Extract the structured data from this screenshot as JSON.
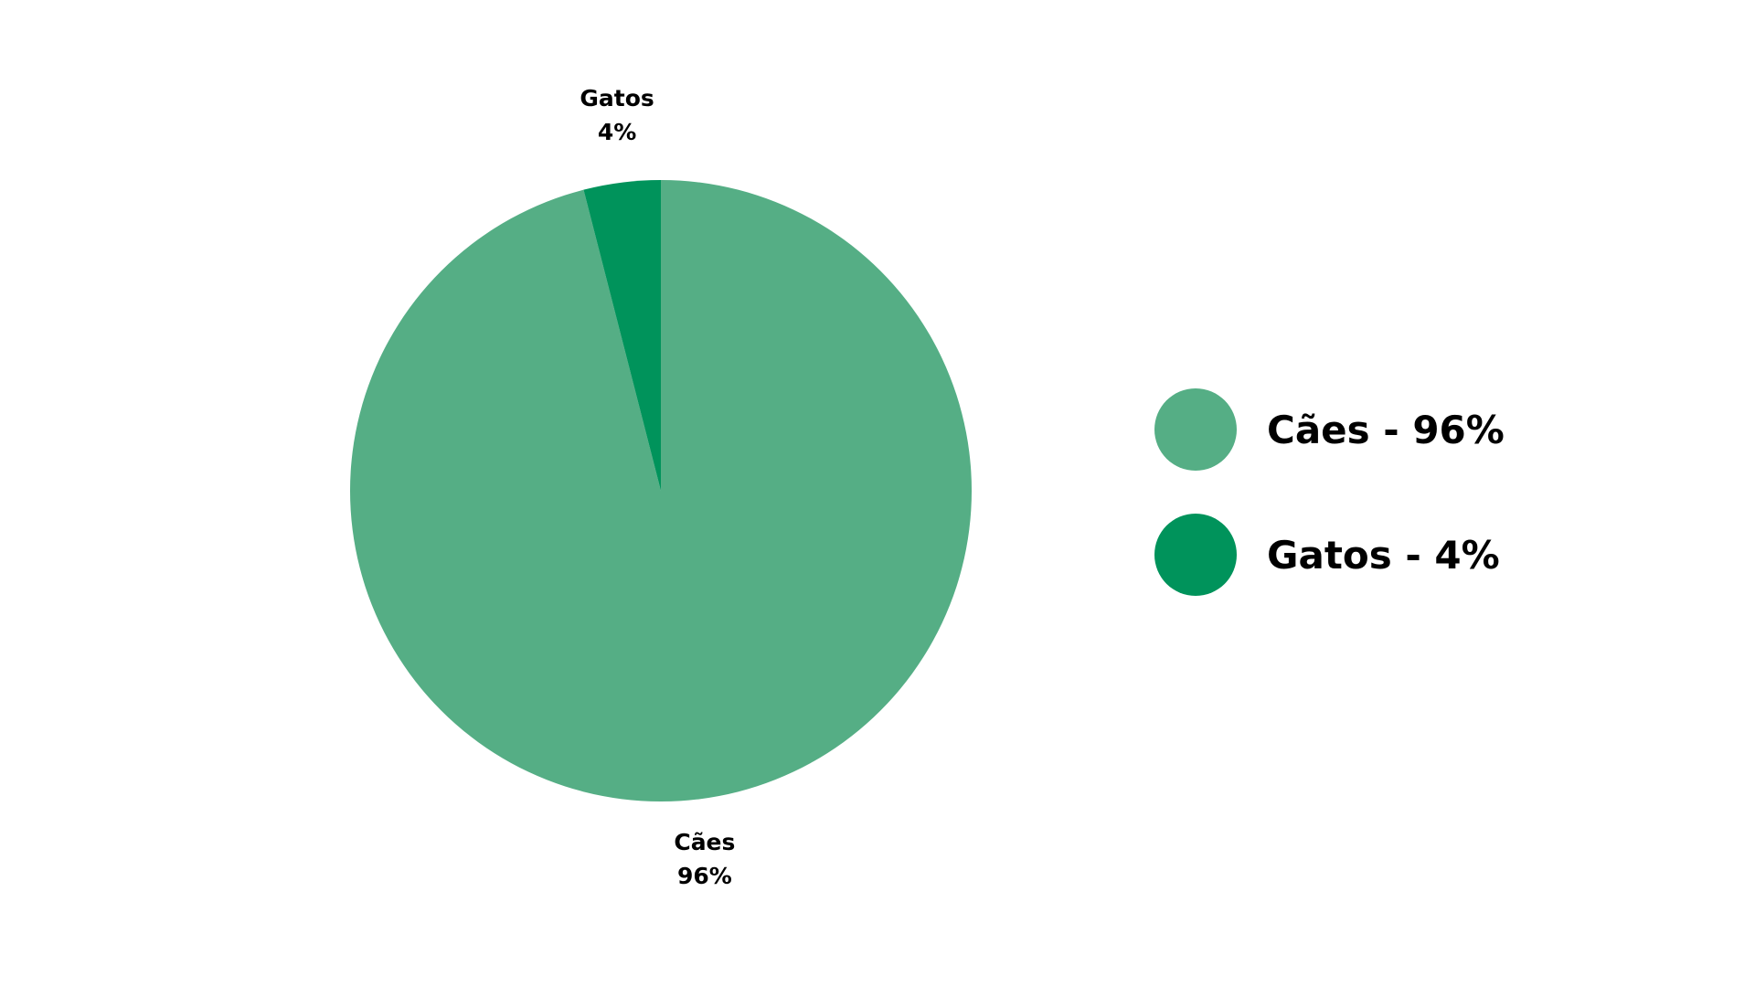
{
  "chart_data": {
    "type": "pie",
    "title": "",
    "slices": [
      {
        "name": "Cães",
        "value": 96,
        "value_label": "96%",
        "legend_label": "Cães - 96%",
        "color": "#55ae85"
      },
      {
        "name": "Gatos",
        "value": 4,
        "value_label": "4%",
        "legend_label": "Gatos - 4%",
        "color": "#00935b"
      }
    ],
    "start_angle": "12 o'clock",
    "direction": "clockwise",
    "legend": "right"
  }
}
